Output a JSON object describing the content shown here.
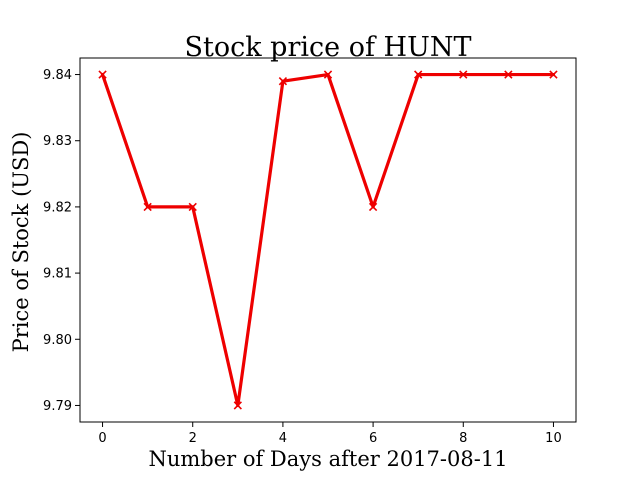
{
  "chart_data": {
    "type": "line",
    "title": "Stock price of HUNT",
    "xlabel": "Number of Days after 2017-08-11",
    "ylabel": "Price of Stock (USD)",
    "x": [
      0,
      1,
      2,
      3,
      4,
      5,
      6,
      7,
      8,
      9,
      10
    ],
    "series": [
      {
        "values": [
          9.84,
          9.82,
          9.82,
          9.79,
          9.839,
          9.84,
          9.82,
          9.84,
          9.84,
          9.84,
          9.84
        ],
        "color": "#ee0000",
        "marker": "x"
      }
    ],
    "xlim": [
      -0.5,
      10.5
    ],
    "ylim": [
      9.7875,
      9.8425
    ],
    "xticks": [
      0,
      2,
      4,
      6,
      8,
      10
    ],
    "yticks": [
      9.79,
      9.8,
      9.81,
      9.82,
      9.83,
      9.84
    ],
    "xtick_labels": [
      "0",
      "2",
      "4",
      "6",
      "8",
      "10"
    ],
    "ytick_labels": [
      "9.79",
      "9.80",
      "9.81",
      "9.82",
      "9.83",
      "9.84"
    ],
    "grid": false,
    "legend": "none"
  }
}
